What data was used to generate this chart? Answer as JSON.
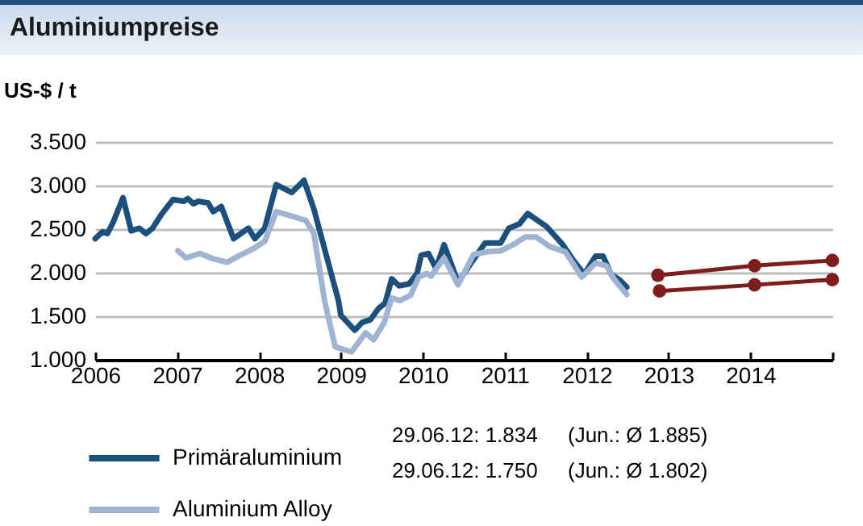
{
  "chart_data": {
    "type": "line",
    "title": "Aluminiumpreise",
    "ylabel": "US-$ / t",
    "xlim": [
      2006,
      2015
    ],
    "xticks": [
      2006,
      2007,
      2008,
      2009,
      2010,
      2011,
      2012,
      2013,
      2014,
      {
        "value": 2015,
        "label": null
      }
    ],
    "ylim": [
      1000,
      3500
    ],
    "yticks": [
      {
        "value": 1000,
        "label": "1.000"
      },
      {
        "value": 1500,
        "label": "1.500"
      },
      {
        "value": 2000,
        "label": "2.000"
      },
      {
        "value": 2500,
        "label": "2.500"
      },
      {
        "value": 3000,
        "label": "3.000"
      },
      {
        "value": 3500,
        "label": "3.500"
      }
    ],
    "grid": "y",
    "legend": "bottom",
    "marker": "none",
    "annotations": [
      "29.06.12: 1.834",
      "(Jun.: Ø 1.885)",
      "29.06.12: 1.750",
      "(Jun.: Ø 1.802)"
    ],
    "series": [
      {
        "name": "Primäraluminium",
        "color": "#1b4f7c",
        "x": [
          2006.0,
          2006.09,
          2006.15,
          2006.22,
          2006.34,
          2006.44,
          2006.54,
          2006.62,
          2006.7,
          2006.81,
          2006.95,
          2007.08,
          2007.13,
          2007.2,
          2007.26,
          2007.38,
          2007.44,
          2007.54,
          2007.69,
          2007.87,
          2007.95,
          2008.07,
          2008.21,
          2008.4,
          2008.55,
          2008.67,
          2008.83,
          2008.97,
          2009.0,
          2009.17,
          2009.26,
          2009.36,
          2009.46,
          2009.54,
          2009.62,
          2009.71,
          2009.83,
          2009.93,
          2009.98,
          2010.07,
          2010.16,
          2010.26,
          2010.43,
          2010.59,
          2010.76,
          2010.95,
          2011.05,
          2011.18,
          2011.28,
          2011.51,
          2011.71,
          2011.84,
          2011.97,
          2012.11,
          2012.2,
          2012.3,
          2012.4,
          2012.49
        ],
        "values": [
          2390,
          2470,
          2450,
          2580,
          2860,
          2480,
          2510,
          2450,
          2510,
          2670,
          2840,
          2820,
          2850,
          2790,
          2820,
          2800,
          2700,
          2760,
          2390,
          2510,
          2390,
          2510,
          3010,
          2920,
          3060,
          2730,
          2170,
          1680,
          1510,
          1340,
          1430,
          1460,
          1590,
          1650,
          1930,
          1850,
          1870,
          1990,
          2200,
          2220,
          2050,
          2320,
          1890,
          2110,
          2340,
          2340,
          2510,
          2560,
          2680,
          2530,
          2320,
          2140,
          1980,
          2190,
          2190,
          1980,
          1920,
          1834
        ]
      },
      {
        "name": "Aluminium Alloy",
        "color": "#9fb4d3",
        "x": [
          2007.01,
          2007.11,
          2007.28,
          2007.44,
          2007.61,
          2007.77,
          2007.94,
          2008.07,
          2008.21,
          2008.4,
          2008.57,
          2008.67,
          2008.8,
          2008.93,
          2009.13,
          2009.3,
          2009.4,
          2009.53,
          2009.62,
          2009.72,
          2009.85,
          2009.95,
          2010.05,
          2010.1,
          2010.26,
          2010.43,
          2010.62,
          2010.79,
          2010.95,
          2011.12,
          2011.25,
          2011.38,
          2011.55,
          2011.74,
          2011.94,
          2012.11,
          2012.24,
          2012.34,
          2012.49
        ],
        "values": [
          2250,
          2170,
          2220,
          2160,
          2120,
          2200,
          2280,
          2360,
          2700,
          2650,
          2600,
          2450,
          1680,
          1150,
          1090,
          1310,
          1230,
          1430,
          1710,
          1680,
          1740,
          1950,
          1990,
          1960,
          2170,
          1860,
          2210,
          2240,
          2250,
          2330,
          2410,
          2410,
          2300,
          2240,
          1950,
          2110,
          2080,
          1920,
          1750
        ]
      },
      {
        "color": "#7f1d1d",
        "marker": "circle",
        "x": [
          2012.87,
          2014.05,
          2015.0
        ],
        "values": [
          1970,
          2080,
          2140
        ]
      },
      {
        "color": "#7f1d1d",
        "marker": "circle",
        "x": [
          2012.89,
          2014.05,
          2015.0
        ],
        "values": [
          1790,
          1860,
          1920
        ]
      }
    ]
  }
}
